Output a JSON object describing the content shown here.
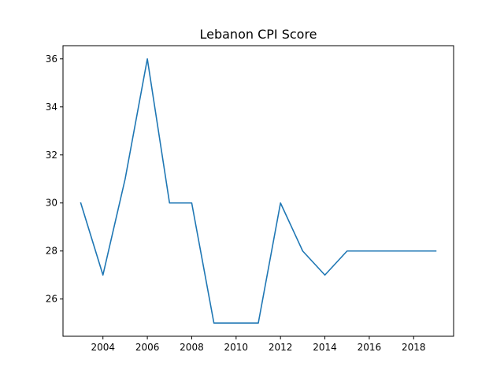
{
  "chart_data": {
    "type": "line",
    "title": "Lebanon CPI Score",
    "xlabel": "",
    "ylabel": "",
    "xlim": [
      2002.2,
      2019.8
    ],
    "ylim": [
      24.45,
      36.55
    ],
    "xticks": [
      2004,
      2006,
      2008,
      2010,
      2012,
      2014,
      2016,
      2018
    ],
    "yticks": [
      26,
      28,
      30,
      32,
      34,
      36
    ],
    "grid": false,
    "legend": "none",
    "series": [
      {
        "color": "#1f77b4",
        "x": [
          2003,
          2004,
          2005,
          2006,
          2007,
          2008,
          2009,
          2010,
          2011,
          2012,
          2013,
          2014,
          2015,
          2016,
          2017,
          2018,
          2019
        ],
        "values": [
          30,
          27,
          31,
          36,
          30,
          30,
          25,
          25,
          25,
          30,
          28,
          27,
          28,
          28,
          28,
          28,
          28
        ]
      }
    ]
  }
}
